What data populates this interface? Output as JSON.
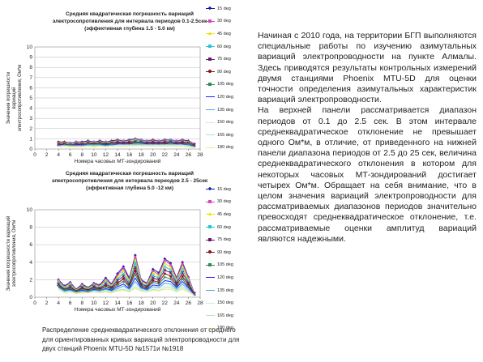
{
  "chart_data": [
    {
      "type": "line",
      "title_lines": [
        "Средняя квадратическая погрешность вариаций",
        "электросопротивления для интервала периодов 0.1-2.5сек",
        "(эффективная глубина 1.5 - 5.0 км)"
      ],
      "ylabel_lines": [
        "Значения погрешности",
        "вариаций",
        "электросопротивления, Ом*м"
      ],
      "xlabel": "Номера часовых МТ-зондирований",
      "xlim": [
        0,
        28
      ],
      "ylim": [
        0,
        10
      ],
      "xticks": [
        "0",
        "2",
        "4",
        "6",
        "8",
        "10",
        "12",
        "14",
        "16",
        "18",
        "20",
        "22",
        "24",
        "26",
        "28"
      ],
      "yticks": [
        "0",
        "1",
        "2",
        "3",
        "4",
        "5",
        "6",
        "7",
        "8",
        "9",
        "10"
      ],
      "x": [
        4,
        5,
        6,
        7,
        8,
        9,
        10,
        11,
        12,
        13,
        14,
        15,
        16,
        17,
        18,
        19,
        20,
        21,
        22,
        23,
        24,
        25,
        26,
        27
      ],
      "series": [
        {
          "name": "15 deg",
          "values": [
            0.7,
            0.7,
            0.6,
            0.7,
            0.7,
            0.8,
            0.7,
            0.8,
            0.7,
            0.8,
            0.9,
            0.8,
            0.9,
            1.0,
            0.9,
            0.8,
            0.9,
            0.8,
            0.9,
            0.9,
            0.8,
            0.9,
            0.8,
            0.5
          ]
        },
        {
          "name": "30 deg",
          "values": [
            0.6,
            0.6,
            0.6,
            0.7,
            0.6,
            0.7,
            0.7,
            0.7,
            0.7,
            0.7,
            0.8,
            0.8,
            0.8,
            0.9,
            0.9,
            0.8,
            0.8,
            0.8,
            0.8,
            0.9,
            0.8,
            0.8,
            0.7,
            0.5
          ]
        },
        {
          "name": "45 deg",
          "values": [
            0.6,
            0.6,
            0.5,
            0.6,
            0.6,
            0.7,
            0.6,
            0.7,
            0.6,
            0.7,
            0.8,
            0.7,
            0.8,
            0.9,
            0.8,
            0.7,
            0.8,
            0.7,
            0.8,
            0.8,
            0.7,
            0.8,
            0.7,
            0.4
          ]
        },
        {
          "name": "60 deg",
          "values": [
            0.5,
            0.5,
            0.5,
            0.6,
            0.5,
            0.6,
            0.6,
            0.6,
            0.6,
            0.6,
            0.7,
            0.7,
            0.7,
            0.8,
            0.8,
            0.7,
            0.7,
            0.7,
            0.7,
            0.8,
            0.7,
            0.7,
            0.6,
            0.4
          ]
        },
        {
          "name": "75 deg",
          "values": [
            0.5,
            0.5,
            0.4,
            0.5,
            0.5,
            0.6,
            0.5,
            0.6,
            0.5,
            0.6,
            0.7,
            0.6,
            0.7,
            0.7,
            0.7,
            0.6,
            0.7,
            0.6,
            0.7,
            0.7,
            0.6,
            0.7,
            0.6,
            0.4
          ]
        },
        {
          "name": "90 deg",
          "values": [
            0.4,
            0.5,
            0.4,
            0.5,
            0.4,
            0.5,
            0.5,
            0.5,
            0.5,
            0.5,
            0.6,
            0.6,
            0.6,
            0.7,
            0.6,
            0.6,
            0.6,
            0.6,
            0.6,
            0.6,
            0.6,
            0.6,
            0.5,
            0.3
          ]
        },
        {
          "name": "105 deg",
          "values": [
            0.4,
            0.4,
            0.4,
            0.4,
            0.4,
            0.5,
            0.4,
            0.5,
            0.4,
            0.5,
            0.5,
            0.5,
            0.5,
            0.6,
            0.6,
            0.5,
            0.5,
            0.5,
            0.5,
            0.6,
            0.5,
            0.5,
            0.5,
            0.3
          ]
        },
        {
          "name": "120 deg",
          "values": [
            0.4,
            0.4,
            0.3,
            0.4,
            0.4,
            0.4,
            0.4,
            0.4,
            0.4,
            0.4,
            0.5,
            0.5,
            0.5,
            0.5,
            0.5,
            0.5,
            0.5,
            0.5,
            0.5,
            0.5,
            0.5,
            0.5,
            0.4,
            0.3
          ]
        },
        {
          "name": "135 deg",
          "values": [
            0.3,
            0.4,
            0.3,
            0.3,
            0.3,
            0.4,
            0.4,
            0.4,
            0.3,
            0.4,
            0.4,
            0.4,
            0.4,
            0.5,
            0.5,
            0.4,
            0.4,
            0.4,
            0.4,
            0.5,
            0.4,
            0.4,
            0.4,
            0.2
          ]
        },
        {
          "name": "150 deg",
          "values": [
            0.3,
            0.3,
            0.3,
            0.3,
            0.3,
            0.3,
            0.3,
            0.3,
            0.3,
            0.3,
            0.4,
            0.4,
            0.4,
            0.4,
            0.4,
            0.4,
            0.4,
            0.4,
            0.4,
            0.4,
            0.4,
            0.4,
            0.3,
            0.2
          ]
        },
        {
          "name": "165 deg",
          "values": [
            0.3,
            0.3,
            0.2,
            0.3,
            0.3,
            0.3,
            0.3,
            0.3,
            0.3,
            0.3,
            0.3,
            0.3,
            0.3,
            0.4,
            0.4,
            0.3,
            0.3,
            0.3,
            0.3,
            0.4,
            0.3,
            0.3,
            0.3,
            0.2
          ]
        },
        {
          "name": "180 deg",
          "values": [
            0.2,
            0.3,
            0.2,
            0.2,
            0.2,
            0.3,
            0.2,
            0.3,
            0.2,
            0.3,
            0.3,
            0.3,
            0.3,
            0.3,
            0.3,
            0.3,
            0.3,
            0.3,
            0.3,
            0.3,
            0.3,
            0.3,
            0.2,
            0.1
          ]
        }
      ]
    },
    {
      "type": "line",
      "title_lines": [
        "Средняя квадратическая погрешность вариаций",
        "электросопротивления для интервала периодов 2.5 - 25сек",
        "(эффективная глубина 5.0 -12 км)"
      ],
      "ylabel_lines": [
        "Значения погрешности вариаций",
        "электросопротивления, Ом*м"
      ],
      "xlabel": "Номера часовых МТ-зондирований",
      "xlim": [
        0,
        28
      ],
      "ylim": [
        0,
        10
      ],
      "xticks": [
        "0",
        "2",
        "4",
        "6",
        "8",
        "10",
        "12",
        "14",
        "16",
        "18",
        "20",
        "22",
        "24",
        "26",
        "28"
      ],
      "yticks": [
        "0",
        "2",
        "4",
        "6",
        "8",
        "10"
      ],
      "x": [
        4,
        5,
        6,
        7,
        8,
        9,
        10,
        11,
        12,
        13,
        14,
        15,
        16,
        17,
        18,
        19,
        20,
        21,
        22,
        23,
        24,
        25,
        26,
        27
      ],
      "series": [
        {
          "name": "15 deg",
          "values": [
            2.0,
            1.3,
            1.7,
            0.9,
            1.5,
            1.1,
            1.6,
            1.4,
            2.2,
            1.5,
            2.7,
            3.5,
            2.2,
            4.8,
            2.0,
            1.6,
            3.2,
            2.8,
            4.4,
            3.9,
            2.2,
            4.0,
            2.3,
            0.5
          ]
        },
        {
          "name": "30 deg",
          "values": [
            1.9,
            1.2,
            1.6,
            0.8,
            1.4,
            1.0,
            1.5,
            1.3,
            2.0,
            1.4,
            2.5,
            3.3,
            2.0,
            4.6,
            1.9,
            1.5,
            3.0,
            2.6,
            4.2,
            3.7,
            2.1,
            3.8,
            2.2,
            0.5
          ]
        },
        {
          "name": "45 deg",
          "values": [
            1.8,
            1.1,
            1.5,
            0.8,
            1.3,
            1.0,
            1.4,
            1.2,
            1.9,
            1.3,
            2.3,
            3.0,
            1.9,
            4.3,
            1.8,
            1.4,
            2.8,
            2.4,
            3.9,
            3.4,
            1.9,
            3.5,
            2.0,
            0.4
          ]
        },
        {
          "name": "60 deg",
          "values": [
            1.7,
            1.0,
            1.4,
            0.7,
            1.2,
            0.9,
            1.3,
            1.1,
            1.7,
            1.2,
            2.1,
            2.7,
            1.7,
            3.9,
            1.6,
            1.3,
            2.5,
            2.2,
            3.5,
            3.1,
            1.8,
            3.2,
            1.8,
            0.4
          ]
        },
        {
          "name": "75 deg",
          "values": [
            1.5,
            0.9,
            1.2,
            0.7,
            1.1,
            0.8,
            1.2,
            1.0,
            1.5,
            1.1,
            1.9,
            2.4,
            1.5,
            3.4,
            1.5,
            1.2,
            2.2,
            2.0,
            3.1,
            2.8,
            1.6,
            2.8,
            1.6,
            0.4
          ]
        },
        {
          "name": "90 deg",
          "values": [
            1.4,
            0.8,
            1.1,
            0.6,
            1.0,
            0.8,
            1.1,
            0.9,
            1.3,
            1.0,
            1.6,
            2.1,
            1.3,
            3.0,
            1.3,
            1.1,
            1.9,
            1.7,
            2.7,
            2.4,
            1.4,
            2.4,
            1.4,
            0.3
          ]
        },
        {
          "name": "105 deg",
          "values": [
            1.3,
            0.8,
            1.0,
            0.6,
            0.9,
            0.7,
            1.0,
            0.8,
            1.2,
            0.9,
            1.4,
            1.8,
            1.2,
            2.6,
            1.2,
            1.0,
            1.7,
            1.5,
            2.3,
            2.1,
            1.2,
            2.1,
            1.2,
            0.3
          ]
        },
        {
          "name": "120 deg",
          "values": [
            1.2,
            0.7,
            0.9,
            0.5,
            0.8,
            0.6,
            0.9,
            0.7,
            1.0,
            0.8,
            1.2,
            1.5,
            1.0,
            2.2,
            1.1,
            0.9,
            1.4,
            1.3,
            1.9,
            1.8,
            1.1,
            1.8,
            1.1,
            0.3
          ]
        },
        {
          "name": "135 deg",
          "values": [
            1.1,
            0.7,
            0.8,
            0.5,
            0.7,
            0.6,
            0.8,
            0.7,
            0.9,
            0.7,
            1.0,
            1.3,
            0.9,
            1.8,
            1.0,
            0.8,
            1.2,
            1.1,
            1.6,
            1.5,
            0.9,
            1.5,
            0.9,
            0.2
          ]
        },
        {
          "name": "150 deg",
          "values": [
            1.0,
            0.6,
            0.7,
            0.5,
            0.6,
            0.5,
            0.7,
            0.6,
            0.8,
            0.6,
            0.9,
            1.1,
            0.8,
            1.5,
            0.9,
            0.7,
            1.0,
            1.0,
            1.3,
            1.3,
            0.8,
            1.3,
            0.8,
            0.2
          ]
        },
        {
          "name": "165 deg",
          "values": [
            0.9,
            0.6,
            0.7,
            0.4,
            0.6,
            0.5,
            0.6,
            0.5,
            0.7,
            0.6,
            0.8,
            0.9,
            0.7,
            1.2,
            0.8,
            0.6,
            0.9,
            0.8,
            1.1,
            1.1,
            0.7,
            1.1,
            0.7,
            0.2
          ]
        },
        {
          "name": "180 deg",
          "values": [
            0.9,
            0.5,
            0.6,
            0.4,
            0.5,
            0.5,
            0.6,
            0.5,
            0.6,
            0.5,
            0.7,
            0.8,
            0.6,
            1.0,
            0.7,
            0.6,
            0.8,
            0.7,
            0.9,
            0.9,
            0.6,
            0.9,
            0.6,
            0.2
          ]
        }
      ]
    }
  ],
  "series_styles": [
    {
      "color": "#1a1aa8",
      "marker": "diamond"
    },
    {
      "color": "#d946b8",
      "marker": "square"
    },
    {
      "color": "#e6e600",
      "marker": "triangle"
    },
    {
      "color": "#22c4d8",
      "marker": "x"
    },
    {
      "color": "#6a1a6a",
      "marker": "star"
    },
    {
      "color": "#8a1414",
      "marker": "circle"
    },
    {
      "color": "#2e8b57",
      "marker": "plus"
    },
    {
      "color": "#2020ff",
      "marker": "none"
    },
    {
      "color": "#4aa8e0",
      "marker": "none"
    },
    {
      "color": "#c8ecec",
      "marker": "none"
    },
    {
      "color": "#b0e8b0",
      "marker": "none"
    },
    {
      "color": "#f0e890",
      "marker": "none"
    }
  ],
  "caption_lines": [
    "Распределение среднеквадратического отклонения от среднего",
    "для ориентированных кривых вариаций электропроводности для",
    "двух станций Phoenix MTU-5D  №1571и №1918"
  ],
  "main_text": [
    "Начиная с 2010 года, на территории БГП выполняются специальные работы по изучению азимутальных вариаций электропроводности на пункте Алмалы. Здесь приводятся результаты контрольных измерений двумя станциями Phoenix MTU-5D для оценки точности определения азимутальных характеристик вариаций электропроводности.",
    "На верхней панели рассматривается диапазон периодов от 0.1 до 2.5 сек. В этом интервале среднеквадратическое отклонение не превышает одного Ом*м, в отличие, от приведенного на нижней панели диапазона периодов от 2.5 до 25 сек, величина среднеквадратического отклонения в котором для некоторых часовых МТ-зондирований достигает четырех Ом*м. Обращает на себя внимание, что в целом значения вариаций электропроводности для рассматриваемых диапазонов периодов значительно превосходят среднеквадратическое отклонение, т.е. рассматриваемые оценки амплитуд вариаций являются надежными."
  ]
}
